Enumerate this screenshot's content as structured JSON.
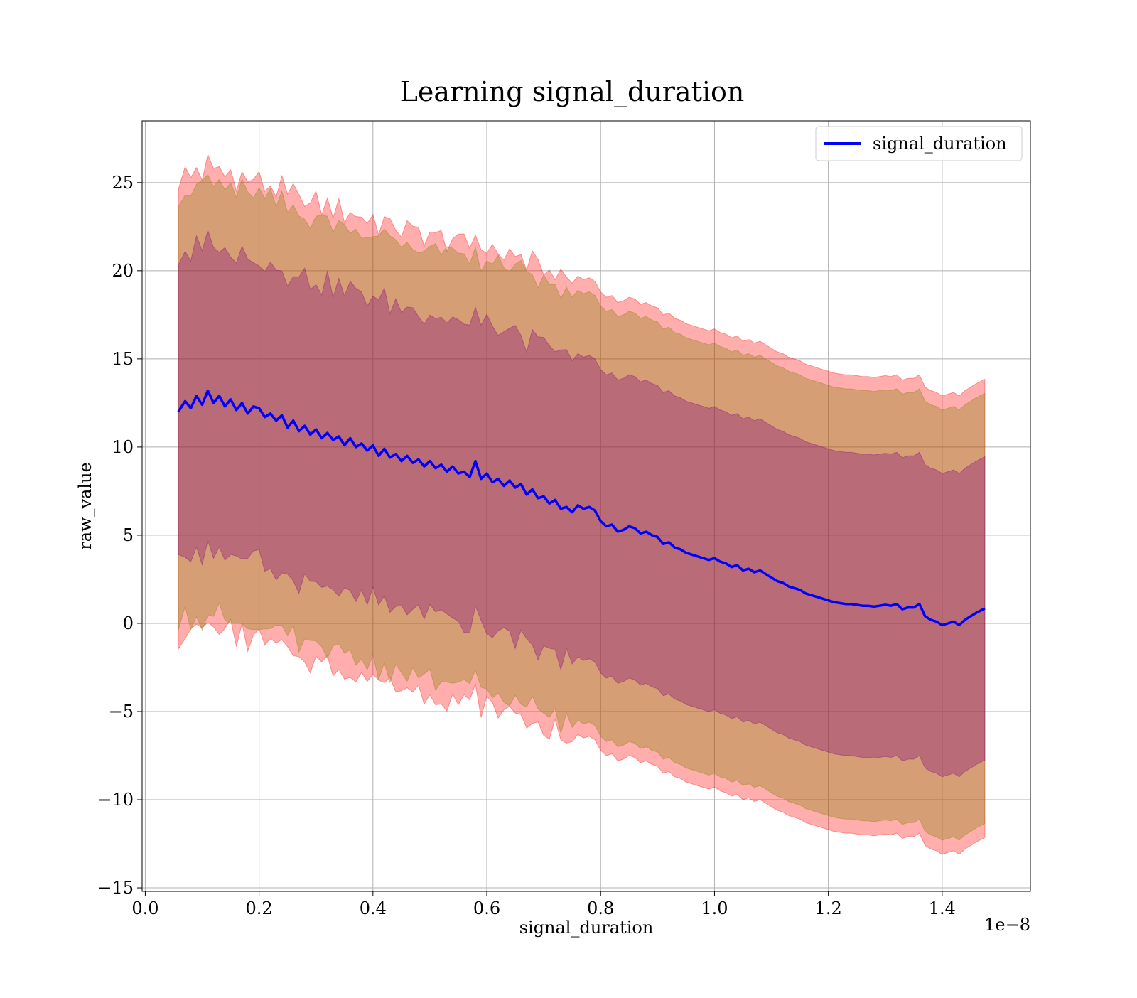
{
  "chart_data": {
    "type": "line",
    "title": "Learning signal_duration",
    "xlabel": "signal_duration",
    "ylabel": "raw_value",
    "x_offset_text": "1e−8",
    "xlim": [
      -0.0055,
      1.555
    ],
    "ylim": [
      -15.2,
      28.5
    ],
    "xticks": [
      0.0,
      0.2,
      0.4,
      0.6,
      0.8,
      1.0,
      1.2,
      1.4
    ],
    "xtick_labels": [
      "0.0",
      "0.2",
      "0.4",
      "0.6",
      "0.8",
      "1.0",
      "1.2",
      "1.4"
    ],
    "yticks": [
      -15,
      -10,
      -5,
      0,
      5,
      10,
      15,
      20,
      25
    ],
    "ytick_labels": [
      "−15",
      "−10",
      "−5",
      "0",
      "5",
      "10",
      "15",
      "20",
      "25"
    ],
    "grid": true,
    "legend": {
      "position": "top-right",
      "entries": [
        "signal_duration"
      ]
    },
    "colors": {
      "line": "#0000ff",
      "band_outer": "#ff0000",
      "band_middle": "#808000",
      "band_inner": "#800080",
      "grid": "#b0b0b0"
    },
    "bands": [
      {
        "name": "outer",
        "half_width": 13.0
      },
      {
        "name": "middle",
        "half_width": 12.2
      },
      {
        "name": "inner",
        "half_width": 8.6
      }
    ],
    "series": [
      {
        "name": "signal_duration",
        "x": [
          0.058,
          0.07,
          0.08,
          0.09,
          0.1,
          0.11,
          0.12,
          0.13,
          0.14,
          0.15,
          0.16,
          0.17,
          0.18,
          0.19,
          0.2,
          0.21,
          0.22,
          0.23,
          0.24,
          0.25,
          0.26,
          0.27,
          0.28,
          0.29,
          0.3,
          0.31,
          0.32,
          0.33,
          0.34,
          0.35,
          0.36,
          0.37,
          0.38,
          0.39,
          0.4,
          0.41,
          0.42,
          0.43,
          0.44,
          0.45,
          0.46,
          0.47,
          0.48,
          0.49,
          0.5,
          0.51,
          0.52,
          0.53,
          0.54,
          0.55,
          0.56,
          0.57,
          0.58,
          0.59,
          0.6,
          0.61,
          0.62,
          0.63,
          0.64,
          0.65,
          0.66,
          0.67,
          0.68,
          0.69,
          0.7,
          0.71,
          0.72,
          0.73,
          0.74,
          0.75,
          0.76,
          0.77,
          0.78,
          0.79,
          0.8,
          0.81,
          0.82,
          0.83,
          0.84,
          0.85,
          0.86,
          0.87,
          0.88,
          0.89,
          0.9,
          0.91,
          0.92,
          0.93,
          0.94,
          0.95,
          0.96,
          0.97,
          0.98,
          0.99,
          1.0,
          1.01,
          1.02,
          1.03,
          1.04,
          1.05,
          1.06,
          1.07,
          1.08,
          1.09,
          1.1,
          1.11,
          1.12,
          1.13,
          1.14,
          1.15,
          1.16,
          1.17,
          1.18,
          1.19,
          1.2,
          1.21,
          1.22,
          1.23,
          1.24,
          1.25,
          1.26,
          1.27,
          1.28,
          1.29,
          1.3,
          1.31,
          1.32,
          1.33,
          1.34,
          1.35,
          1.36,
          1.37,
          1.38,
          1.39,
          1.4,
          1.41,
          1.42,
          1.43,
          1.44,
          1.45,
          1.46,
          1.475
        ],
        "y": [
          12.0,
          12.6,
          12.2,
          12.9,
          12.4,
          13.2,
          12.5,
          12.9,
          12.3,
          12.7,
          12.1,
          12.5,
          11.9,
          12.3,
          12.2,
          11.7,
          11.9,
          11.5,
          11.8,
          11.1,
          11.5,
          10.9,
          11.2,
          10.7,
          11.0,
          10.5,
          10.8,
          10.4,
          10.6,
          10.1,
          10.5,
          10.0,
          10.2,
          9.8,
          10.1,
          9.5,
          9.9,
          9.4,
          9.6,
          9.2,
          9.5,
          9.1,
          9.3,
          8.9,
          9.2,
          8.8,
          9.0,
          8.6,
          8.9,
          8.5,
          8.6,
          8.3,
          9.2,
          8.2,
          8.5,
          8.0,
          8.2,
          7.8,
          8.1,
          7.7,
          7.9,
          7.3,
          7.6,
          7.1,
          7.2,
          6.8,
          7.0,
          6.5,
          6.6,
          6.3,
          6.7,
          6.5,
          6.6,
          6.4,
          5.8,
          5.5,
          5.6,
          5.2,
          5.3,
          5.5,
          5.4,
          5.1,
          5.2,
          5.0,
          4.9,
          4.5,
          4.6,
          4.3,
          4.2,
          4.0,
          3.9,
          3.8,
          3.7,
          3.6,
          3.7,
          3.5,
          3.4,
          3.2,
          3.3,
          3.0,
          3.1,
          2.9,
          3.0,
          2.8,
          2.6,
          2.4,
          2.3,
          2.1,
          2.0,
          1.9,
          1.7,
          1.6,
          1.5,
          1.4,
          1.3,
          1.2,
          1.15,
          1.1,
          1.1,
          1.05,
          1.0,
          1.0,
          0.95,
          1.0,
          1.05,
          1.0,
          1.1,
          0.8,
          0.9,
          0.9,
          1.1,
          0.4,
          0.2,
          0.1,
          -0.1,
          0.0,
          0.1,
          -0.1,
          0.2,
          0.4,
          0.6,
          0.85
        ]
      }
    ]
  }
}
